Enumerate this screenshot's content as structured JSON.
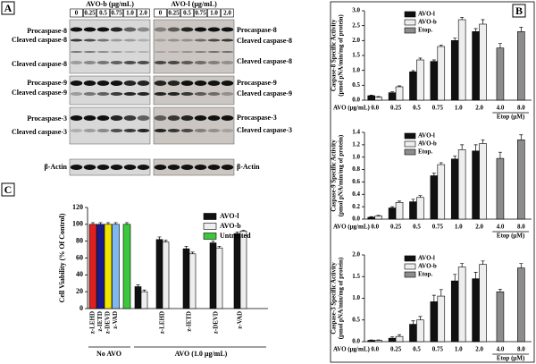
{
  "panels": [
    "A",
    "B",
    "C"
  ],
  "blots": {
    "left": {
      "header": "AVO-b (μg/mL)",
      "lanes": [
        "0",
        "0.25",
        "0.5",
        "0.75",
        "1.0",
        "2.0"
      ],
      "labels": [
        "Procaspase-8",
        "Cleaved caspase-8",
        "Cleaved caspase-8",
        "Procaspase-9",
        "Cleaved caspase-9",
        "Procaspase-3",
        "Cleaved caspase-3",
        "β-Actin"
      ]
    },
    "right": {
      "header": "AVO-l (μg/mL)",
      "lanes": [
        "0",
        "0.25",
        "0.5",
        "0.75",
        "1.0",
        "2.0"
      ],
      "labels": [
        "Procaspase-8",
        "Cleaved caspase-8",
        "Cleaved caspase-8",
        "Procaspase-9",
        "Cleaved caspase-9",
        "Procaspase-3",
        "Cleaved caspase-3",
        "β-Actin"
      ]
    }
  },
  "chart_data": [
    {
      "type": "bar",
      "ylabel": [
        "Caspase-8 Specific Activity",
        "(pmol pNA/min/mg of protein)"
      ],
      "xlabel": "AVO (μg/mL)",
      "etop_label": "Etop (μM)",
      "categories": [
        "0.0",
        "0.25",
        "0.5",
        "0.75",
        "1.0",
        "2.0",
        "4.0",
        "8.0"
      ],
      "ylim": [
        0,
        3
      ],
      "yticks": [
        {
          "value": 0,
          "label": "0.0"
        },
        0.5,
        {
          "value": 1,
          "label": "1.0"
        },
        1.5,
        {
          "value": 2,
          "label": "2.0"
        },
        2.5,
        {
          "value": 3,
          "label": "3.0"
        }
      ],
      "legend": "upper left",
      "series": [
        {
          "name": "AVO-l",
          "color": "#111111",
          "values": [
            0.15,
            0.25,
            0.95,
            1.3,
            2.0,
            2.3,
            null,
            null
          ],
          "errors": [
            0.02,
            0.03,
            0.04,
            0.05,
            0.08,
            0.1,
            null,
            null
          ]
        },
        {
          "name": "AVO-b",
          "color": "#eeeeee",
          "values": [
            0.1,
            0.45,
            1.35,
            1.8,
            2.7,
            2.55,
            null,
            null
          ],
          "errors": [
            0.02,
            0.03,
            0.06,
            0.05,
            0.08,
            0.15,
            null,
            null
          ]
        },
        {
          "name": "Etop.",
          "color": "#8c8c8c",
          "values": [
            null,
            null,
            null,
            null,
            null,
            null,
            1.75,
            2.3
          ],
          "errors": [
            null,
            null,
            null,
            null,
            null,
            null,
            0.15,
            0.15
          ]
        }
      ]
    },
    {
      "type": "bar",
      "ylabel": [
        "Caspase-9 Specific Activity",
        "(pmol pNA/min/mg of protein)"
      ],
      "xlabel": "AVO (μg/mL)",
      "etop_label": "Etop (μM)",
      "categories": [
        "0.0",
        "0.25",
        "0.5",
        "0.75",
        "1.0",
        "2.0",
        "4.0",
        "8.0"
      ],
      "ylim": [
        0,
        1.4
      ],
      "yticks": [
        {
          "value": 0,
          "label": "0.0"
        },
        0.2,
        0.4,
        0.6,
        0.8,
        {
          "value": 1,
          "label": "1.0"
        },
        1.2,
        1.4
      ],
      "legend": "upper left",
      "series": [
        {
          "name": "AVO-l",
          "color": "#111111",
          "values": [
            0.03,
            0.18,
            0.28,
            0.7,
            0.97,
            1.1,
            null,
            null
          ],
          "errors": [
            0.01,
            0.02,
            0.04,
            0.04,
            0.05,
            0.1,
            null,
            null
          ]
        },
        {
          "name": "AVO-b",
          "color": "#eeeeee",
          "values": [
            0.05,
            0.27,
            0.35,
            0.88,
            1.12,
            1.22,
            null,
            null
          ],
          "errors": [
            0.01,
            0.02,
            0.03,
            0.03,
            0.08,
            0.06,
            null,
            null
          ]
        },
        {
          "name": "Etop.",
          "color": "#8c8c8c",
          "values": [
            null,
            null,
            null,
            null,
            null,
            null,
            0.98,
            1.28
          ],
          "errors": [
            null,
            null,
            null,
            null,
            null,
            null,
            0.1,
            0.08
          ]
        }
      ]
    },
    {
      "type": "bar",
      "ylabel": [
        "Caspase-3 Specific Activity",
        "(pmol pNA/min/mg of protein)"
      ],
      "xlabel": "AVO (μg/mL)",
      "etop_label": "Etop (μM)",
      "categories": [
        "0.0",
        "0.25",
        "0.5",
        "0.75",
        "1.0",
        "2.0",
        "4.0",
        "8.0"
      ],
      "ylim": [
        0,
        2
      ],
      "yticks": [
        {
          "value": 0,
          "label": "0.0"
        },
        0.5,
        {
          "value": 1,
          "label": "1.0"
        },
        1.5,
        {
          "value": 2,
          "label": "2.0"
        }
      ],
      "legend": "upper left",
      "series": [
        {
          "name": "AVO-l",
          "color": "#111111",
          "values": [
            0.03,
            0.08,
            0.4,
            0.92,
            1.4,
            1.45,
            null,
            null
          ],
          "errors": [
            0.01,
            0.03,
            0.08,
            0.15,
            0.15,
            0.15,
            null,
            null
          ]
        },
        {
          "name": "AVO-b",
          "color": "#eeeeee",
          "values": [
            0.03,
            0.12,
            0.5,
            1.05,
            1.72,
            1.78,
            null,
            null
          ],
          "errors": [
            0.01,
            0.04,
            0.08,
            0.15,
            0.08,
            0.08,
            null,
            null
          ]
        },
        {
          "name": "Etop.",
          "color": "#8c8c8c",
          "values": [
            null,
            null,
            null,
            null,
            null,
            null,
            1.15,
            1.7
          ],
          "errors": [
            null,
            null,
            null,
            null,
            null,
            null,
            0.06,
            0.1
          ]
        }
      ]
    },
    {
      "type": "grouped-bar",
      "ylabel": "Cell Viability (% Of Control)",
      "ylim": [
        0,
        120
      ],
      "yticks": [
        0,
        20,
        40,
        60,
        80,
        100,
        120
      ],
      "legend": "upper right",
      "no_avo": {
        "label": "No AVO",
        "categories": [
          "z-LEHD",
          "z-IETD",
          "z-DEVD",
          "z-VAD"
        ],
        "colors": [
          "#e02020",
          "#1a1a8c",
          "#f2e600",
          "#7fb8f0"
        ],
        "values": [
          100,
          100,
          100,
          100
        ],
        "errors": [
          2,
          2,
          2,
          2
        ]
      },
      "avo": {
        "label": "AVO (1.0 μg/mL)",
        "categories": [
          null,
          "z-LEHD",
          "z-IETD",
          "z-DEVD",
          "z-VAD"
        ]
      },
      "series": [
        {
          "name": "AVO-l",
          "color": "#111111",
          "values": [
            26,
            82,
            71,
            78,
            89
          ],
          "errors": [
            2,
            3,
            3,
            2,
            2
          ]
        },
        {
          "name": "AVO-b",
          "color": "#eeeeee",
          "values": [
            20,
            79,
            65,
            72,
            92
          ],
          "errors": [
            2,
            2,
            2,
            2,
            1
          ]
        },
        {
          "name": "Untreated",
          "color": "#3cc83c",
          "values": [
            100
          ],
          "errors": [
            2
          ]
        }
      ]
    }
  ]
}
